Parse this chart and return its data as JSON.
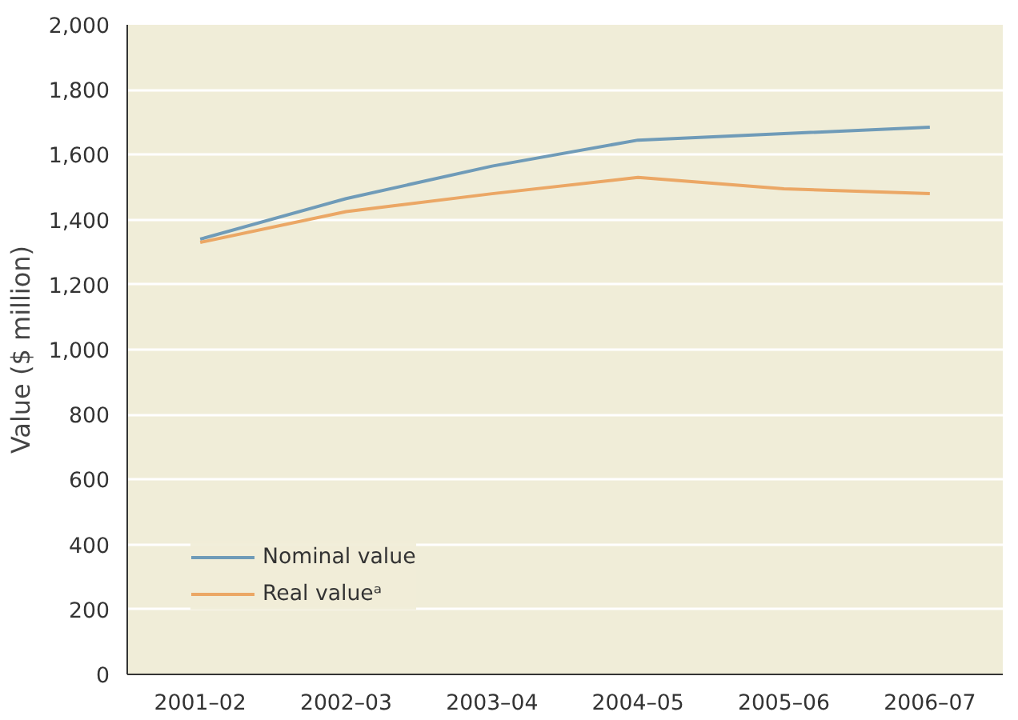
{
  "chart_data": {
    "type": "line",
    "ylabel": "Value ($ million)",
    "categories": [
      "2001–02",
      "2002–03",
      "2003–04",
      "2004–05",
      "2005–06",
      "2006–07"
    ],
    "series": [
      {
        "name": "Nominal value",
        "color": "#6f9bb8",
        "values": [
          1340,
          1465,
          1565,
          1645,
          1665,
          1685
        ]
      },
      {
        "name": "Real valueᵃ",
        "color": "#eba765",
        "values": [
          1330,
          1425,
          1480,
          1530,
          1495,
          1480
        ]
      }
    ],
    "ylim": [
      0,
      2000
    ],
    "yticks": [
      {
        "value": 0,
        "label": "0"
      },
      {
        "value": 200,
        "label": "200"
      },
      {
        "value": 400,
        "label": "400"
      },
      {
        "value": 600,
        "label": "600"
      },
      {
        "value": 800,
        "label": "800"
      },
      {
        "value": 1000,
        "label": "1,000"
      },
      {
        "value": 1200,
        "label": "1,200"
      },
      {
        "value": 1400,
        "label": "1,400"
      },
      {
        "value": 1600,
        "label": "1,600"
      },
      {
        "value": 1800,
        "label": "1,800"
      },
      {
        "value": 2000,
        "label": "2,000"
      }
    ],
    "grid": "y",
    "legend": "bottom left",
    "marker": "none",
    "line_style": "solid"
  }
}
